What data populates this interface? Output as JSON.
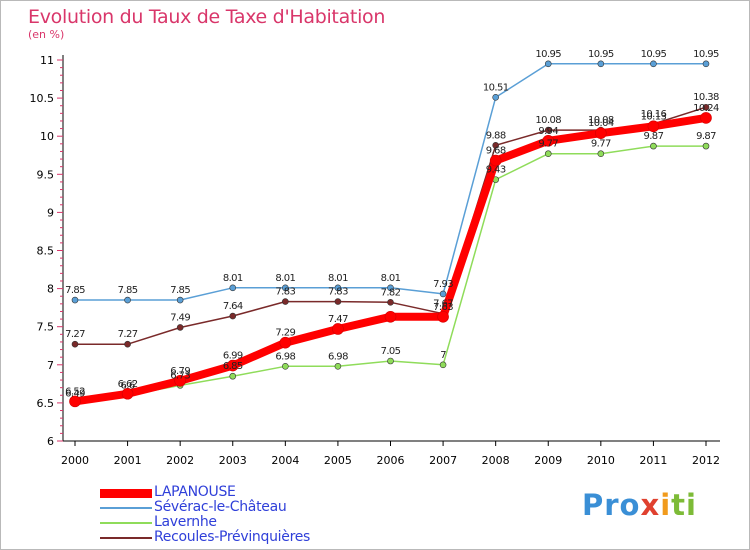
{
  "title": "Evolution du Taux de Taxe d'Habitation",
  "subtitle": "(en %)",
  "logo": {
    "p1": "Pro",
    "p2": "x",
    "p3": "i",
    "p4": "ti"
  },
  "chart_data": {
    "type": "line",
    "title": "Evolution du Taux de Taxe d'Habitation",
    "ylabel": "(en %)",
    "xlabel": "",
    "x": [
      "2000",
      "2001",
      "2002",
      "2003",
      "2004",
      "2005",
      "2006",
      "2007",
      "2008",
      "2009",
      "2010",
      "2011",
      "2012"
    ],
    "ylim": [
      6,
      11
    ],
    "yticks": [
      "6",
      "6.5",
      "7",
      "7.5",
      "8",
      "8.5",
      "9",
      "9.5",
      "10",
      "10.5",
      "11"
    ],
    "grid": false,
    "legend_position": "bottom-left",
    "series": [
      {
        "name": "LAPANOUSE",
        "color": "#ff0000",
        "values": [
          6.52,
          6.62,
          6.79,
          6.99,
          7.29,
          7.47,
          7.63,
          7.63,
          9.68,
          9.94,
          10.04,
          10.13,
          10.24
        ],
        "labels": [
          "6.52",
          "6.62",
          "6.79",
          "6.99",
          "7.29",
          "7.47",
          "",
          "7.63",
          "9.68",
          "9.94",
          "10.04",
          "10.13",
          "10.24"
        ]
      },
      {
        "name": "Sévérac-le-Château",
        "color": "#5a9fd6",
        "values": [
          7.85,
          7.85,
          7.85,
          8.01,
          8.01,
          8.01,
          8.01,
          7.93,
          10.51,
          10.95,
          10.95,
          10.95,
          10.95
        ],
        "labels": [
          "7.85",
          "7.85",
          "7.85",
          "8.01",
          "8.01",
          "8.01",
          "8.01",
          "7.93",
          "10.51",
          "10.95",
          "10.95",
          "10.95",
          "10.95"
        ]
      },
      {
        "name": "Lavernhe",
        "color": "#8fdc5a",
        "values": [
          6.49,
          6.6,
          6.73,
          6.85,
          6.98,
          6.98,
          7.05,
          7.0,
          9.43,
          9.77,
          9.77,
          9.87,
          9.87
        ],
        "labels": [
          "6.49",
          "6.6",
          "6.73",
          "6.85",
          "6.98",
          "6.98",
          "7.05",
          "7",
          "9.43",
          "9.77",
          "9.77",
          "9.87",
          "9.87"
        ]
      },
      {
        "name": "Recoules-Prévinquières",
        "color": "#7a2a2a",
        "values": [
          7.27,
          7.27,
          7.49,
          7.64,
          7.83,
          7.83,
          7.82,
          7.67,
          9.88,
          10.08,
          10.08,
          10.16,
          10.38
        ],
        "labels": [
          "7.27",
          "7.27",
          "7.49",
          "7.64",
          "7.83",
          "7.83",
          "7.82",
          "7.67",
          "9.88",
          "10.08",
          "10.08",
          "10.16",
          "10.38"
        ]
      }
    ]
  }
}
